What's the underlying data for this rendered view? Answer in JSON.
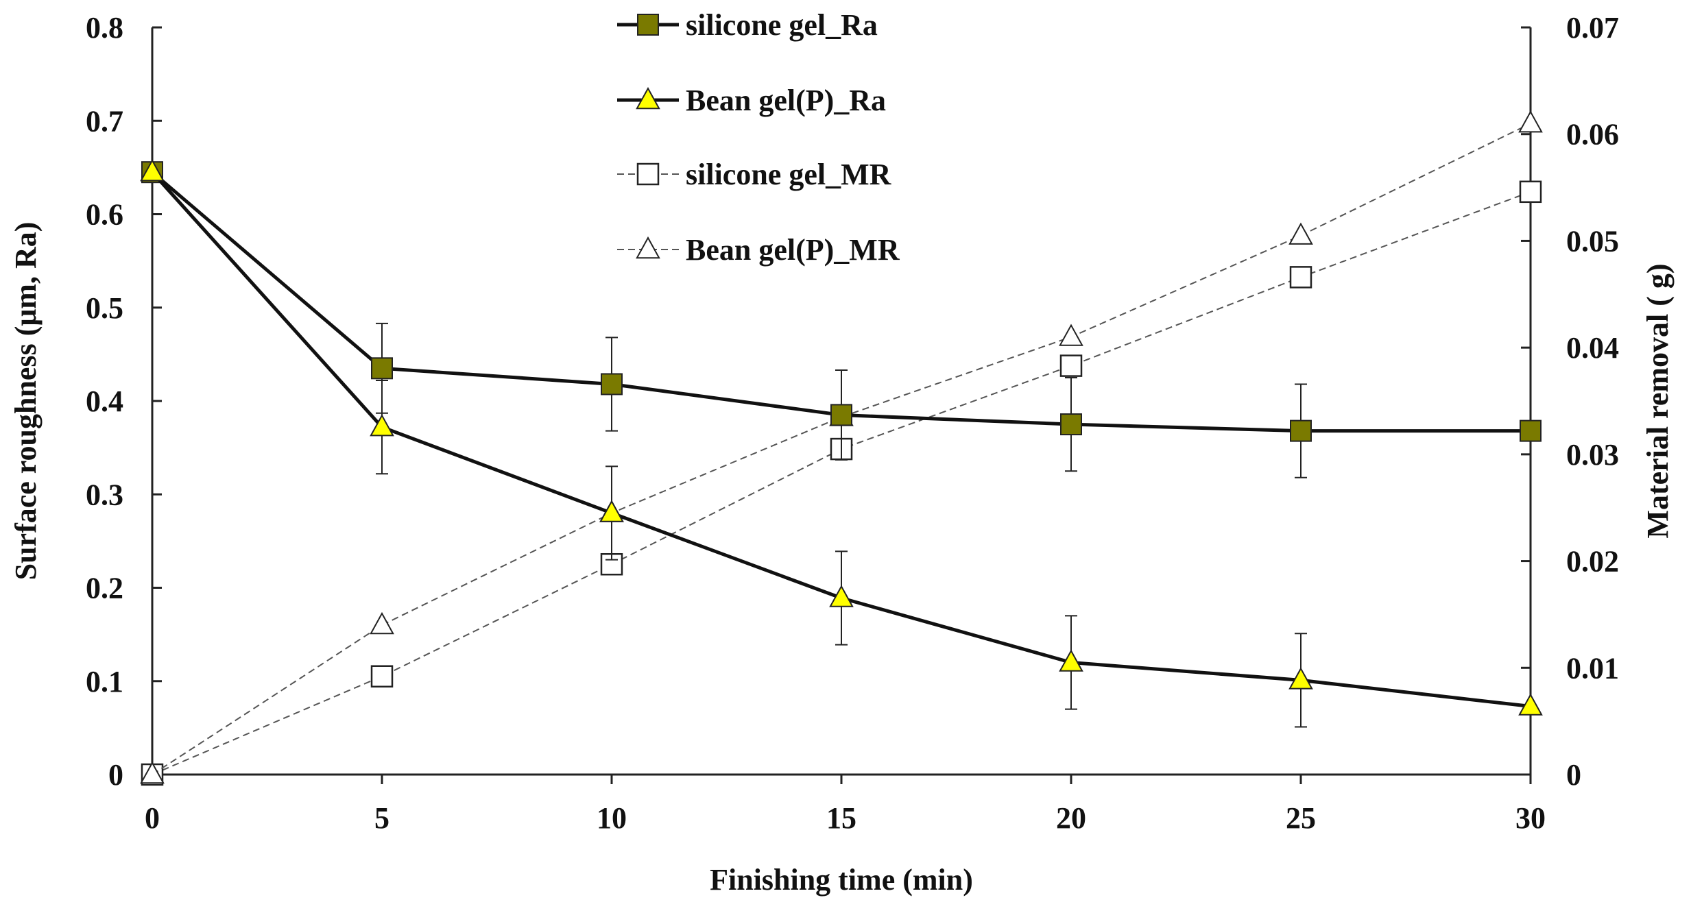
{
  "chart_data": {
    "type": "line",
    "xlabel": "Finishing  time (min)",
    "ylabel": "Surface roughness (μm, Ra)",
    "y2label": "Material removal ( g)",
    "xlim": [
      0,
      30
    ],
    "ylim": [
      0,
      0.8
    ],
    "y2lim": [
      0,
      0.07
    ],
    "x_ticks": [
      "0",
      "5",
      "10",
      "15",
      "20",
      "25",
      "30"
    ],
    "y_ticks": [
      "0",
      "0.1",
      "0.2",
      "0.3",
      "0.4",
      "0.5",
      "0.6",
      "0.7",
      "0.8"
    ],
    "y2_ticks": [
      "0",
      "0.01",
      "0.02",
      "0.03",
      "0.04",
      "0.05",
      "0.06",
      "0.07"
    ],
    "x": [
      0,
      5,
      10,
      15,
      20,
      25,
      30
    ],
    "series": [
      {
        "name": "silicone gel_Ra",
        "axis": "left",
        "marker": "square",
        "filled": true,
        "line": "solid",
        "color": "#7a7a00",
        "values": [
          0.645,
          0.435,
          0.418,
          0.385,
          0.375,
          0.368,
          0.368
        ],
        "errors": [
          null,
          0.048,
          0.05,
          0.048,
          0.05,
          0.05,
          null
        ]
      },
      {
        "name": "Bean gel(P)_Ra",
        "axis": "left",
        "marker": "triangle",
        "filled": true,
        "line": "solid",
        "color": "#ffff00",
        "values": [
          0.645,
          0.372,
          0.28,
          0.189,
          0.12,
          0.101,
          0.073
        ],
        "errors": [
          null,
          0.05,
          0.05,
          0.05,
          0.05,
          0.05,
          null
        ]
      },
      {
        "name": "silicone gel_MR",
        "axis": "right",
        "marker": "square",
        "filled": false,
        "line": "dashed",
        "color": "#ffffff",
        "values": [
          0,
          0.0092,
          0.0197,
          0.0305,
          0.0383,
          0.0466,
          0.0546
        ]
      },
      {
        "name": "Bean gel(P)_MR",
        "axis": "right",
        "marker": "triangle",
        "filled": false,
        "line": "dashed",
        "color": "#ffffff",
        "values": [
          0,
          0.014,
          0.0245,
          0.0335,
          0.041,
          0.0505,
          0.061
        ]
      }
    ],
    "legend_position": "top-center"
  }
}
